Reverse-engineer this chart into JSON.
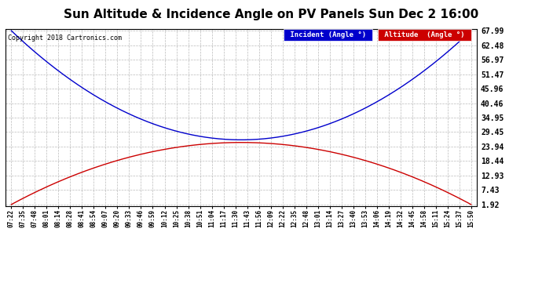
{
  "title": "Sun Altitude & Incidence Angle on PV Panels Sun Dec 2 16:00",
  "copyright": "Copyright 2018 Cartronics.com",
  "yticks": [
    1.92,
    7.43,
    12.93,
    18.44,
    23.94,
    29.45,
    34.95,
    40.46,
    45.96,
    51.47,
    56.97,
    62.48,
    67.99
  ],
  "xtick_labels": [
    "07:22",
    "07:35",
    "07:48",
    "08:01",
    "08:14",
    "08:28",
    "08:41",
    "08:54",
    "09:07",
    "09:20",
    "09:33",
    "09:46",
    "09:59",
    "10:12",
    "10:25",
    "10:38",
    "10:51",
    "11:04",
    "11:17",
    "11:30",
    "11:43",
    "11:56",
    "12:09",
    "12:22",
    "12:35",
    "12:48",
    "13:01",
    "13:14",
    "13:27",
    "13:40",
    "13:53",
    "14:06",
    "14:19",
    "14:32",
    "14:45",
    "14:58",
    "15:11",
    "15:24",
    "15:37",
    "15:50"
  ],
  "incident_color": "#0000cc",
  "altitude_color": "#cc0000",
  "background_color": "#ffffff",
  "grid_color": "#aaaaaa",
  "title_fontsize": 11,
  "legend_incident_bg": "#0000cc",
  "legend_altitude_bg": "#cc0000",
  "legend_text_color": "#ffffff",
  "ymin": 1.92,
  "ymax": 67.99,
  "incident_min": 26.5,
  "altitude_max": 25.5,
  "altitude_min": 1.92
}
